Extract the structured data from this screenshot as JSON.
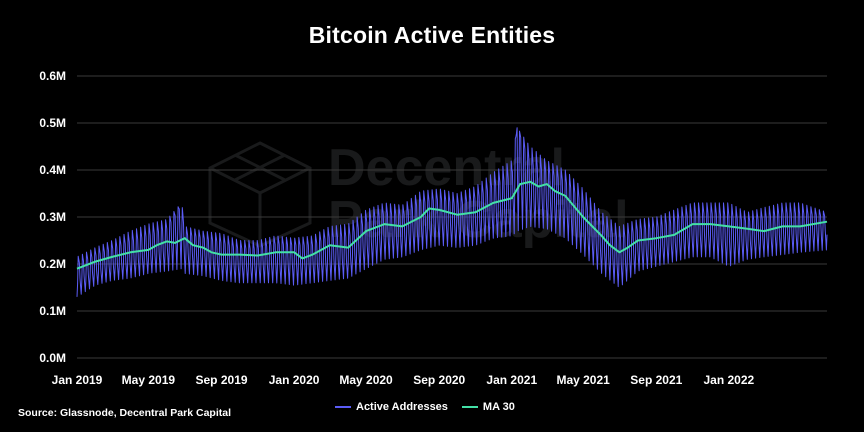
{
  "title": "Bitcoin Active Entities",
  "source": "Source: Glassnode, Decentral Park Capital",
  "watermark": {
    "line1": "Decentral",
    "line2": "Park Capital"
  },
  "colors": {
    "background": "#000000",
    "active_addresses": "#5b5cf6",
    "ma30": "#43e0a6",
    "grid": "#3a3a3a"
  },
  "legend": [
    {
      "label": "Active Addresses",
      "color": "#5b5cf6"
    },
    {
      "label": "MA 30",
      "color": "#43e0a6"
    }
  ],
  "chart_data": {
    "type": "line",
    "title": "Bitcoin Active Entities",
    "xlabel": "",
    "ylabel": "",
    "x_range": [
      "2019-01-01",
      "2022-06-15"
    ],
    "ylim": [
      0,
      600000
    ],
    "y_ticks": [
      {
        "value": 0,
        "label": "0.0M"
      },
      {
        "value": 100000,
        "label": "0.1M"
      },
      {
        "value": 200000,
        "label": "0.2M"
      },
      {
        "value": 300000,
        "label": "0.3M"
      },
      {
        "value": 400000,
        "label": "0.4M"
      },
      {
        "value": 500000,
        "label": "0.5M"
      },
      {
        "value": 600000,
        "label": "0.6M"
      }
    ],
    "x_ticks": [
      {
        "value": "2019-01-01",
        "label": "Jan 2019"
      },
      {
        "value": "2019-05-01",
        "label": "May 2019"
      },
      {
        "value": "2019-09-01",
        "label": "Sep 2019"
      },
      {
        "value": "2020-01-01",
        "label": "Jan 2020"
      },
      {
        "value": "2020-05-01",
        "label": "May 2020"
      },
      {
        "value": "2020-09-01",
        "label": "Sep 2020"
      },
      {
        "value": "2021-01-01",
        "label": "Jan 2021"
      },
      {
        "value": "2021-05-01",
        "label": "May 2021"
      },
      {
        "value": "2021-09-01",
        "label": "Sep 2021"
      },
      {
        "value": "2022-01-01",
        "label": "Jan 2022"
      }
    ],
    "grid": true,
    "legend_position": "bottom-center",
    "series": [
      {
        "name": "MA 30",
        "color": "#43e0a6",
        "x": [
          "2019-01-01",
          "2019-02-01",
          "2019-03-01",
          "2019-04-01",
          "2019-05-01",
          "2019-05-15",
          "2019-06-01",
          "2019-06-15",
          "2019-07-01",
          "2019-07-15",
          "2019-08-01",
          "2019-08-15",
          "2019-09-01",
          "2019-10-01",
          "2019-11-01",
          "2019-12-01",
          "2020-01-01",
          "2020-01-15",
          "2020-02-01",
          "2020-03-01",
          "2020-04-01",
          "2020-05-01",
          "2020-06-01",
          "2020-07-01",
          "2020-08-01",
          "2020-08-15",
          "2020-09-01",
          "2020-10-01",
          "2020-11-01",
          "2020-12-01",
          "2021-01-01",
          "2021-01-15",
          "2021-02-01",
          "2021-02-15",
          "2021-03-01",
          "2021-03-15",
          "2021-04-01",
          "2021-05-01",
          "2021-06-01",
          "2021-06-15",
          "2021-07-01",
          "2021-07-15",
          "2021-08-01",
          "2021-09-01",
          "2021-10-01",
          "2021-11-01",
          "2021-12-01",
          "2022-01-01",
          "2022-02-01",
          "2022-03-01",
          "2022-04-01",
          "2022-05-01",
          "2022-06-15"
        ],
        "values": [
          190000,
          205000,
          215000,
          225000,
          230000,
          240000,
          248000,
          245000,
          255000,
          240000,
          235000,
          225000,
          220000,
          220000,
          218000,
          225000,
          225000,
          212000,
          220000,
          240000,
          235000,
          270000,
          285000,
          280000,
          300000,
          318000,
          315000,
          305000,
          310000,
          330000,
          340000,
          370000,
          375000,
          365000,
          370000,
          355000,
          345000,
          300000,
          260000,
          240000,
          225000,
          235000,
          250000,
          255000,
          262000,
          285000,
          285000,
          280000,
          275000,
          270000,
          280000,
          280000,
          290000
        ]
      },
      {
        "name": "Active Addresses",
        "color": "#5b5cf6",
        "x": [
          "2019-01-01",
          "2019-02-01",
          "2019-03-01",
          "2019-04-01",
          "2019-05-01",
          "2019-06-01",
          "2019-06-26",
          "2019-07-01",
          "2019-08-01",
          "2019-09-01",
          "2019-10-01",
          "2019-11-01",
          "2019-12-01",
          "2020-01-01",
          "2020-02-01",
          "2020-03-01",
          "2020-04-01",
          "2020-05-01",
          "2020-06-01",
          "2020-07-01",
          "2020-08-01",
          "2020-09-01",
          "2020-10-01",
          "2020-11-01",
          "2020-12-01",
          "2021-01-01",
          "2021-01-10",
          "2021-02-01",
          "2021-03-01",
          "2021-04-01",
          "2021-05-01",
          "2021-06-01",
          "2021-07-01",
          "2021-08-01",
          "2021-09-01",
          "2021-10-01",
          "2021-11-01",
          "2021-12-01",
          "2022-01-01",
          "2022-02-01",
          "2022-03-01",
          "2022-04-01",
          "2022-05-01",
          "2022-06-15"
        ],
        "values": [
          185000,
          200000,
          215000,
          225000,
          235000,
          255000,
          320000,
          245000,
          240000,
          225000,
          215000,
          215000,
          225000,
          225000,
          220000,
          235000,
          230000,
          265000,
          285000,
          280000,
          305000,
          315000,
          305000,
          315000,
          335000,
          350000,
          490000,
          375000,
          370000,
          350000,
          300000,
          255000,
          225000,
          250000,
          255000,
          265000,
          285000,
          285000,
          275000,
          270000,
          275000,
          285000,
          285000,
          295000
        ],
        "low_values": [
          130000,
          155000,
          165000,
          170000,
          180000,
          185000,
          190000,
          180000,
          175000,
          165000,
          160000,
          160000,
          160000,
          155000,
          160000,
          165000,
          170000,
          190000,
          210000,
          215000,
          230000,
          240000,
          235000,
          240000,
          255000,
          260000,
          270000,
          280000,
          275000,
          255000,
          220000,
          180000,
          150000,
          185000,
          195000,
          205000,
          215000,
          215000,
          195000,
          210000,
          215000,
          220000,
          225000,
          230000
        ],
        "high_values": [
          215000,
          235000,
          250000,
          270000,
          285000,
          295000,
          330000,
          280000,
          270000,
          265000,
          250000,
          250000,
          260000,
          255000,
          260000,
          280000,
          285000,
          315000,
          330000,
          325000,
          355000,
          360000,
          350000,
          365000,
          395000,
          420000,
          490000,
          450000,
          420000,
          400000,
          360000,
          310000,
          280000,
          295000,
          300000,
          315000,
          330000,
          330000,
          330000,
          310000,
          320000,
          330000,
          330000,
          310000
        ]
      }
    ]
  }
}
